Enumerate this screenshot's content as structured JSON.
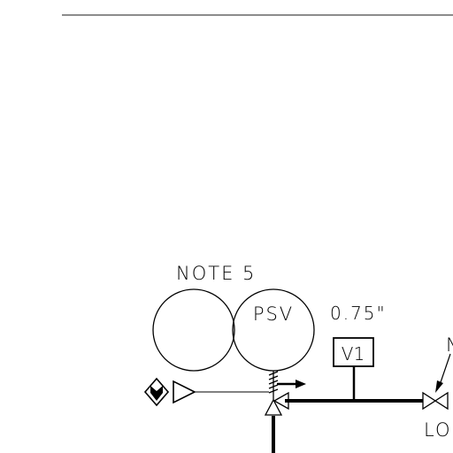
{
  "labels": {
    "note": "NOTE 5",
    "valve_tag": "PSV",
    "size": "0.75\"",
    "box_tag": "V1",
    "lo_label": "LO",
    "edge_letter": "N"
  },
  "colors": {
    "ink": "#000000",
    "border_line": "#8c8c8c",
    "background": "#ffffff"
  }
}
